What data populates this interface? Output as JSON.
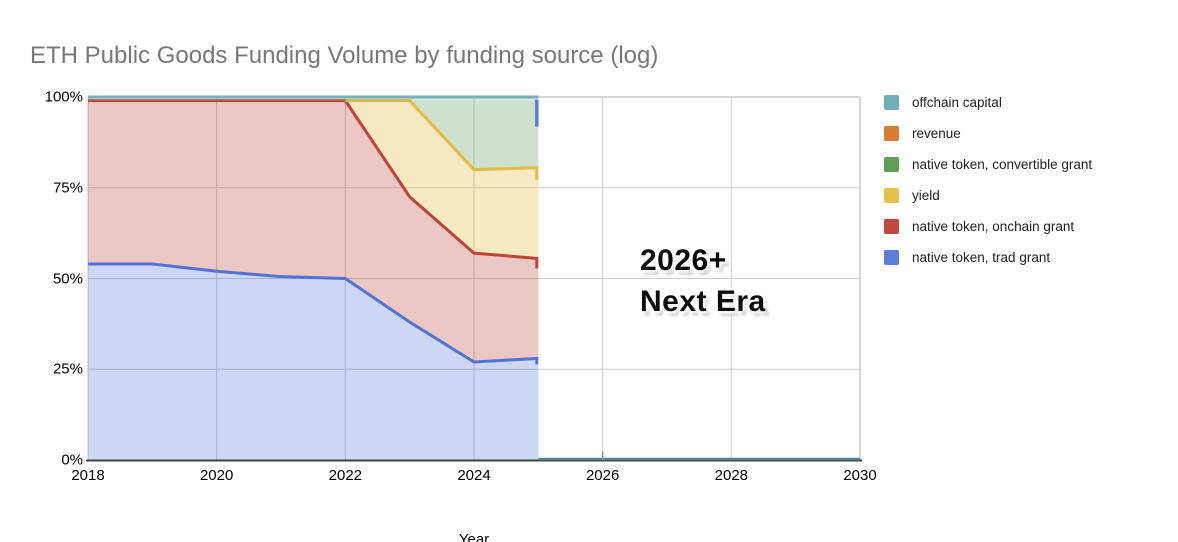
{
  "title": "ETH Public Goods Funding Volume by funding source (log)",
  "annotation": {
    "line1": "2026+",
    "line2": "Next Era"
  },
  "legend": [
    {
      "label": "offchain capital",
      "color": "#72aeb8"
    },
    {
      "label": "revenue",
      "color": "#da7a30"
    },
    {
      "label": "native token, convertible grant",
      "color": "#5f9d58"
    },
    {
      "label": "yield",
      "color": "#e7c04c"
    },
    {
      "label": "native token, onchain grant",
      "color": "#c0483d"
    },
    {
      "label": "native token, trad grant",
      "color": "#5b7cd9"
    }
  ],
  "chart_data": {
    "type": "area",
    "stacking": "percent",
    "title": "ETH Public Goods Funding Volume by funding source (log)",
    "xlabel": "Year",
    "ylabel": "",
    "xlim": [
      2018,
      2030
    ],
    "ylim": [
      0,
      100
    ],
    "grid": true,
    "legend_position": "right",
    "x_ticks": [
      "2018",
      "2020",
      "2022",
      "2024",
      "2026",
      "2028",
      "2030"
    ],
    "x_tick_years": [
      2018,
      2020,
      2022,
      2024,
      2026,
      2028,
      2030
    ],
    "y_ticks": [
      "100%",
      "75%",
      "50%",
      "25%",
      "0%"
    ],
    "y_tick_values": [
      100,
      75,
      50,
      25,
      0
    ],
    "years": [
      2018,
      2019,
      2020,
      2021,
      2022,
      2023,
      2024,
      2025
    ],
    "series": [
      {
        "name": "native token, trad grant",
        "color": "#5b7cd9",
        "line_color": "#5272d8",
        "fill_opacity": 0.3,
        "line_from": 2018,
        "values": [
          54,
          54,
          52,
          50.5,
          50,
          38,
          27,
          28
        ]
      },
      {
        "name": "native token, onchain grant",
        "color": "#c0483d",
        "line_color": "#bf4438",
        "fill_opacity": 0.3,
        "line_from": 2018,
        "values": [
          45,
          45,
          47,
          48.5,
          49,
          34.5,
          30,
          27.5
        ]
      },
      {
        "name": "yield",
        "color": "#e7c04c",
        "line_color": "#e5bb42",
        "fill_opacity": 0.35,
        "line_from": 2022,
        "values": [
          0,
          0,
          0,
          0,
          0,
          26.5,
          23,
          25
        ]
      },
      {
        "name": "native token, convertible grant",
        "color": "#5f9d58",
        "line_color": "#5f9d58",
        "fill_opacity": 0.3,
        "line_from": null,
        "values": [
          0,
          0,
          0,
          0,
          0,
          0,
          19,
          18.5
        ]
      },
      {
        "name": "revenue",
        "color": "#da7a30",
        "line_color": "#da7a30",
        "fill_opacity": 0.3,
        "line_from": null,
        "values": [
          0,
          0,
          0,
          0,
          0,
          0,
          0,
          0
        ]
      },
      {
        "name": "offchain capital",
        "color": "#72aeb8",
        "line_color": "#77b1ba",
        "fill_opacity": 0.3,
        "line_from": 2018,
        "values": [
          1,
          1,
          1,
          1,
          1,
          1,
          1,
          1
        ]
      }
    ],
    "post_2025": {
      "series": "offchain capital",
      "from": 2026,
      "to": 2030,
      "values_pct": [
        0,
        0,
        0,
        0,
        0
      ]
    }
  }
}
